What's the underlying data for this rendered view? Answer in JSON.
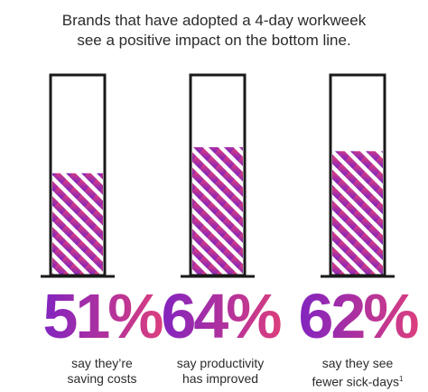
{
  "title_lines": [
    "Brands that have adopted a 4-day workweek",
    "see a positive impact on the bottom line."
  ],
  "colors": {
    "gradient_start": "#7b22c4",
    "gradient_end": "#e0407a",
    "outline": "#1a1a1a"
  },
  "chart_data": {
    "type": "bar",
    "title": "Brands that have adopted a 4-day workweek see a positive impact on the bottom line.",
    "categories": [
      "say they're saving costs",
      "say productivity has improved",
      "say they see fewer sick-days"
    ],
    "values": [
      51,
      64,
      62
    ],
    "ylim": [
      0,
      100
    ],
    "grid": false,
    "value_labels": [
      "51%",
      "64%",
      "62%"
    ],
    "captions": [
      [
        "say they’re",
        "saving costs"
      ],
      [
        "say productivity",
        "has improved"
      ],
      [
        "say they see",
        "fewer sick-days"
      ]
    ],
    "footnote_marker": "1"
  }
}
